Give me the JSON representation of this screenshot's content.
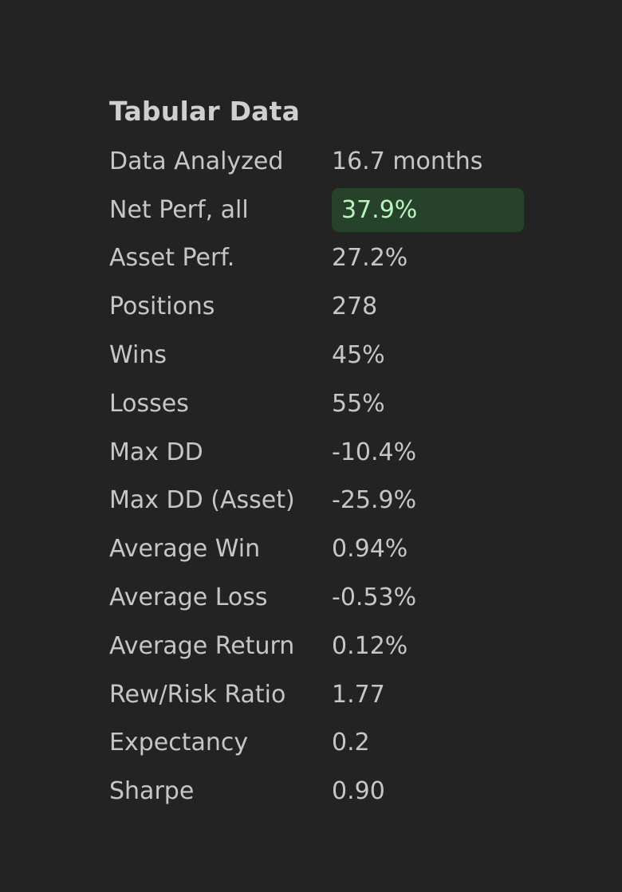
{
  "title": "Tabular Data",
  "accent": {
    "highlight_bg": "#26422a",
    "highlight_text": "#b9f5bd"
  },
  "rows": [
    {
      "label": "Data Analyzed",
      "value": "16.7 months"
    },
    {
      "label": "Net Perf, all",
      "value": "37.9%"
    },
    {
      "label": "Asset Perf.",
      "value": "27.2%"
    },
    {
      "label": "Positions",
      "value": "278"
    },
    {
      "label": "Wins",
      "value": "45%"
    },
    {
      "label": "Losses",
      "value": "55%"
    },
    {
      "label": "Max DD",
      "value": "-10.4%"
    },
    {
      "label": "Max DD (Asset)",
      "value": "-25.9%"
    },
    {
      "label": "Average Win",
      "value": "0.94%"
    },
    {
      "label": "Average Loss",
      "value": "-0.53%"
    },
    {
      "label": "Average Return",
      "value": "0.12%"
    },
    {
      "label": "Rew/Risk Ratio",
      "value": "1.77"
    },
    {
      "label": "Expectancy",
      "value": "0.2"
    },
    {
      "label": "Sharpe",
      "value": "0.90"
    }
  ]
}
